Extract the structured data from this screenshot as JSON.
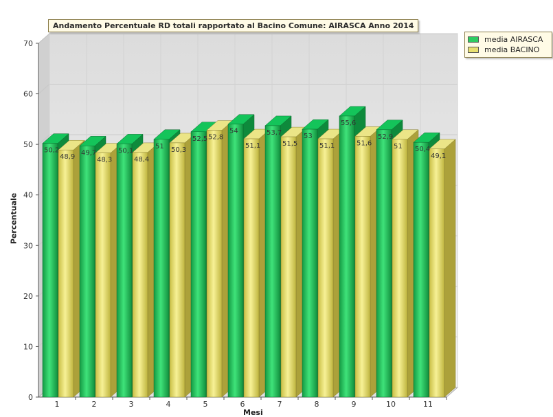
{
  "chart_data": {
    "type": "bar",
    "title": "Andamento Percentuale RD totali rapportato al Bacino Comune: AIRASCA Anno 2014",
    "xlabel": "Mesi",
    "ylabel": "Percentuale",
    "categories": [
      "1",
      "2",
      "3",
      "4",
      "5",
      "6",
      "7",
      "8",
      "9",
      "10",
      "11"
    ],
    "series": [
      {
        "name": "media AIRASCA",
        "values": [
          50.2,
          49.7,
          50.1,
          51,
          52.5,
          54,
          53.7,
          53,
          55.6,
          52.9,
          50.4
        ],
        "color": "#2ecc60"
      },
      {
        "name": "media BACINO",
        "values": [
          48.9,
          48.3,
          48.4,
          50.3,
          52.8,
          51.1,
          51.5,
          51.1,
          51.6,
          51,
          49.1
        ],
        "color": "#e8e070"
      }
    ],
    "yticks": [
      0,
      10,
      20,
      30,
      40,
      50,
      60,
      70
    ],
    "ylim": [
      0,
      70
    ],
    "grid": true,
    "legend": "top-right"
  }
}
